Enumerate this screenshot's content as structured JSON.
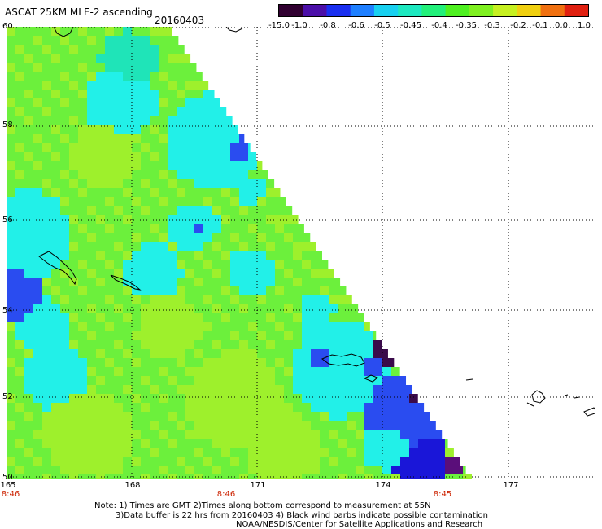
{
  "header": {
    "title": "ASCAT 25KM MLE-2 ascending",
    "date": "20160403"
  },
  "colorbar": {
    "labels": [
      "-15.0",
      "-1.0",
      "-0.8",
      "-0.6",
      "-0.5",
      "-0.45",
      "-0.4",
      "-0.35",
      "-0.3",
      "-0.2",
      "-0.1",
      "0.0",
      "1.0"
    ],
    "colors": [
      "#300030",
      "#4b0fa8",
      "#1a2ff0",
      "#1e7fff",
      "#18d0f0",
      "#1de8c0",
      "#22f07a",
      "#4ef020",
      "#7ff020",
      "#c6f020",
      "#f0d010",
      "#f07010",
      "#e02010"
    ]
  },
  "map": {
    "lat_labels": [
      "60",
      "58",
      "56",
      "54",
      "52",
      "50"
    ],
    "lon_labels": [
      "165",
      "168",
      "171",
      "174",
      "177"
    ],
    "time_labels": [
      "8:46",
      "8:46",
      "8:45"
    ],
    "colors": {
      "green": "#6cf03c",
      "lime": "#9ef02c",
      "cyan": "#22f0e8",
      "teal": "#1fe4b8",
      "blue": "#2a4cf0",
      "deep_blue": "#1a16d8",
      "purple": "#5a0e7a",
      "dark_purple": "#3a0a4a",
      "coast": "#000000",
      "grid": "#000000"
    }
  },
  "notes": {
    "line1": "Note: 1) Times are GMT 2)Times along bottom correspond to measurement at 55N",
    "line2": "3)Data buffer is 22 hrs from 20160403 4) Black wind barbs indicate possible contamination",
    "line3": "NOAA/NESDIS/Center for Satellite Applications and Research"
  }
}
